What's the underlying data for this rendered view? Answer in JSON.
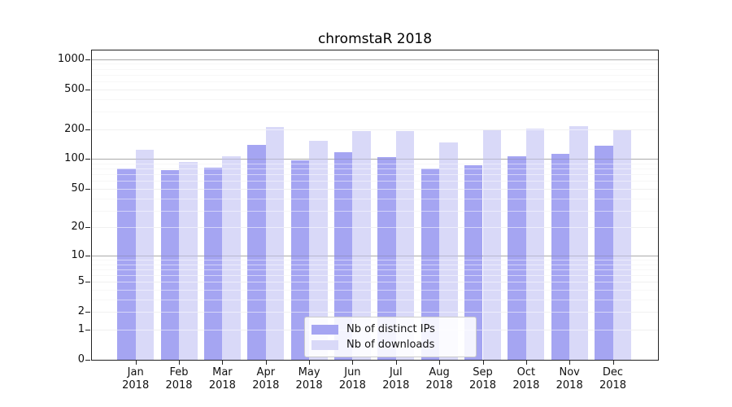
{
  "title": "chromstaR 2018",
  "colors": {
    "ips": "#a5a5f2",
    "downloads": "#d9d9f8",
    "grid_major": "#dedede",
    "grid_minor": "#efefef",
    "grid_decade": "#c5c5c5",
    "spine": "#222222",
    "text": "#111111"
  },
  "chart_data": {
    "type": "bar",
    "title": "chromstaR 2018",
    "scale": "log1p",
    "grid": true,
    "legend_position": "inside-bottom-center",
    "categories": [
      {
        "month": "Jan",
        "year": "2018"
      },
      {
        "month": "Feb",
        "year": "2018"
      },
      {
        "month": "Mar",
        "year": "2018"
      },
      {
        "month": "Apr",
        "year": "2018"
      },
      {
        "month": "May",
        "year": "2018"
      },
      {
        "month": "Jun",
        "year": "2018"
      },
      {
        "month": "Jul",
        "year": "2018"
      },
      {
        "month": "Aug",
        "year": "2018"
      },
      {
        "month": "Sep",
        "year": "2018"
      },
      {
        "month": "Oct",
        "year": "2018"
      },
      {
        "month": "Nov",
        "year": "2018"
      },
      {
        "month": "Dec",
        "year": "2018"
      }
    ],
    "series": [
      {
        "name": "Nb of distinct IPs",
        "values": [
          80,
          77,
          82,
          140,
          97,
          117,
          105,
          80,
          87,
          106,
          113,
          136
        ]
      },
      {
        "name": "Nb of downloads",
        "values": [
          124,
          94,
          107,
          210,
          152,
          190,
          190,
          148,
          195,
          204,
          215,
          195
        ]
      }
    ],
    "y_ticks": [
      0,
      1,
      2,
      5,
      10,
      20,
      50,
      100,
      200,
      500,
      1000
    ],
    "y_minor_ticks": [
      3,
      4,
      6,
      7,
      8,
      9,
      30,
      40,
      60,
      70,
      80,
      90,
      300,
      400,
      600,
      700,
      800,
      900
    ],
    "ylim": [
      0,
      1500
    ]
  }
}
